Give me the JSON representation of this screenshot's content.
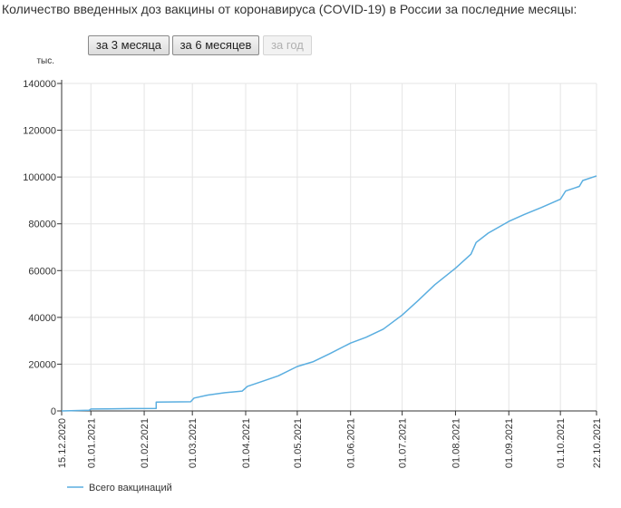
{
  "title": "Количество введенных доз вакцины от коронавируса (COVID-19) в России за последние месяцы:",
  "buttons": {
    "three_months": "за 3 месяца",
    "six_months": "за 6 месяцев",
    "one_year": "за год"
  },
  "colors": {
    "line": "#5aaee0",
    "grid": "#e4e4e4",
    "axis": "#333333"
  },
  "chart_data": {
    "type": "line",
    "title": "",
    "xlabel": "",
    "ylabel": "тыс.",
    "ylim": [
      0,
      140000
    ],
    "yticks": [
      0,
      20000,
      40000,
      60000,
      80000,
      100000,
      120000,
      140000
    ],
    "xlim": [
      "2020-12-15",
      "2021-10-22"
    ],
    "xticks": [
      "15.12.2020",
      "01.01.2021",
      "01.02.2021",
      "01.03.2021",
      "01.04.2021",
      "01.05.2021",
      "01.06.2021",
      "01.07.2021",
      "01.08.2021",
      "01.09.2021",
      "01.10.2021",
      "22.10.2021"
    ],
    "grid": true,
    "legend": "bottom-left",
    "series": [
      {
        "name": "Всего вакцинаций",
        "points": [
          [
            "2020-12-15",
            0
          ],
          [
            "2020-12-31",
            300
          ],
          [
            "2021-01-01",
            800
          ],
          [
            "2021-01-10",
            900
          ],
          [
            "2021-01-25",
            1000
          ],
          [
            "2021-02-08",
            1100
          ],
          [
            "2021-02-08",
            3800
          ],
          [
            "2021-02-28",
            3900
          ],
          [
            "2021-03-02",
            5500
          ],
          [
            "2021-03-10",
            6800
          ],
          [
            "2021-03-20",
            7800
          ],
          [
            "2021-03-30",
            8500
          ],
          [
            "2021-04-02",
            10500
          ],
          [
            "2021-04-10",
            12500
          ],
          [
            "2021-04-20",
            15000
          ],
          [
            "2021-05-01",
            19000
          ],
          [
            "2021-05-10",
            21000
          ],
          [
            "2021-05-20",
            24500
          ],
          [
            "2021-06-01",
            29000
          ],
          [
            "2021-06-10",
            31500
          ],
          [
            "2021-06-20",
            35000
          ],
          [
            "2021-07-01",
            41000
          ],
          [
            "2021-07-10",
            47000
          ],
          [
            "2021-07-20",
            54000
          ],
          [
            "2021-08-01",
            61000
          ],
          [
            "2021-08-10",
            67000
          ],
          [
            "2021-08-13",
            72000
          ],
          [
            "2021-08-20",
            76000
          ],
          [
            "2021-09-01",
            81000
          ],
          [
            "2021-09-10",
            84000
          ],
          [
            "2021-09-20",
            87000
          ],
          [
            "2021-10-01",
            90500
          ],
          [
            "2021-10-04",
            94000
          ],
          [
            "2021-10-12",
            96000
          ],
          [
            "2021-10-14",
            98500
          ],
          [
            "2021-10-22",
            100500
          ]
        ]
      }
    ]
  }
}
